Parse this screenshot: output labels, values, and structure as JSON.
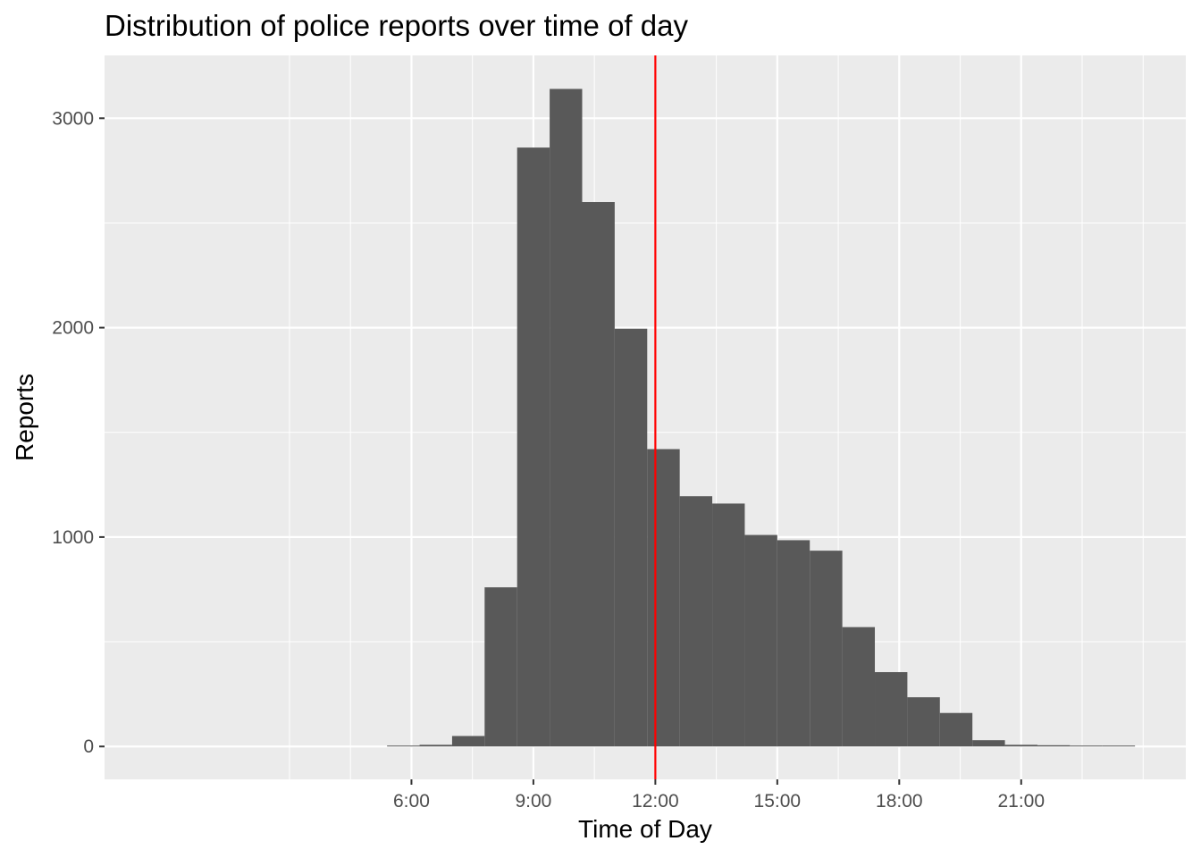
{
  "chart_data": {
    "type": "bar",
    "title": "Distribution of police reports over time of day",
    "xlabel": "Time of Day",
    "ylabel": "Reports",
    "x_unit": "hour of day",
    "bin_width_hours": 0.8,
    "bins": [
      {
        "start": 5.4,
        "end": 6.2,
        "value": 2
      },
      {
        "start": 6.2,
        "end": 7.0,
        "value": 8
      },
      {
        "start": 7.0,
        "end": 7.8,
        "value": 50
      },
      {
        "start": 7.8,
        "end": 8.6,
        "value": 760
      },
      {
        "start": 8.6,
        "end": 9.4,
        "value": 2860
      },
      {
        "start": 9.4,
        "end": 10.2,
        "value": 3140
      },
      {
        "start": 10.2,
        "end": 11.0,
        "value": 2600
      },
      {
        "start": 11.0,
        "end": 11.8,
        "value": 1995
      },
      {
        "start": 11.8,
        "end": 12.6,
        "value": 1420
      },
      {
        "start": 12.6,
        "end": 13.4,
        "value": 1195
      },
      {
        "start": 13.4,
        "end": 14.2,
        "value": 1160
      },
      {
        "start": 14.2,
        "end": 15.0,
        "value": 1010
      },
      {
        "start": 15.0,
        "end": 15.8,
        "value": 985
      },
      {
        "start": 15.8,
        "end": 16.6,
        "value": 935
      },
      {
        "start": 16.6,
        "end": 17.4,
        "value": 570
      },
      {
        "start": 17.4,
        "end": 18.2,
        "value": 355
      },
      {
        "start": 18.2,
        "end": 19.0,
        "value": 235
      },
      {
        "start": 19.0,
        "end": 19.8,
        "value": 160
      },
      {
        "start": 19.8,
        "end": 20.6,
        "value": 30
      },
      {
        "start": 20.6,
        "end": 21.4,
        "value": 8
      },
      {
        "start": 21.4,
        "end": 22.2,
        "value": 6
      },
      {
        "start": 22.2,
        "end": 23.0,
        "value": 0
      },
      {
        "start": 23.0,
        "end": 23.8,
        "value": 2
      }
    ],
    "x_range": [
      -1.55,
      25.05
    ],
    "y_range": [
      -157,
      3300
    ],
    "x_ticks": [
      {
        "value": 6,
        "label": "6:00"
      },
      {
        "value": 9,
        "label": "9:00"
      },
      {
        "value": 12,
        "label": "12:00"
      },
      {
        "value": 15,
        "label": "15:00"
      },
      {
        "value": 18,
        "label": "18:00"
      },
      {
        "value": 21,
        "label": "21:00"
      }
    ],
    "x_minor_gridlines": [
      3,
      4.5,
      7.5,
      10.5,
      13.5,
      16.5,
      19.5,
      22.5,
      24
    ],
    "y_ticks": [
      {
        "value": 0,
        "label": "0"
      },
      {
        "value": 1000,
        "label": "1000"
      },
      {
        "value": 2000,
        "label": "2000"
      },
      {
        "value": 3000,
        "label": "3000"
      }
    ],
    "y_minor_gridlines": [
      500,
      1500,
      2500
    ],
    "reference_line": {
      "x": 12,
      "color": "#ff0000"
    },
    "grid": true,
    "colors": {
      "panel_background": "#ebebeb",
      "grid": "#ffffff",
      "bar_fill": "#595959",
      "tick_text": "#4d4d4d",
      "reference_line": "#ff0000"
    }
  }
}
